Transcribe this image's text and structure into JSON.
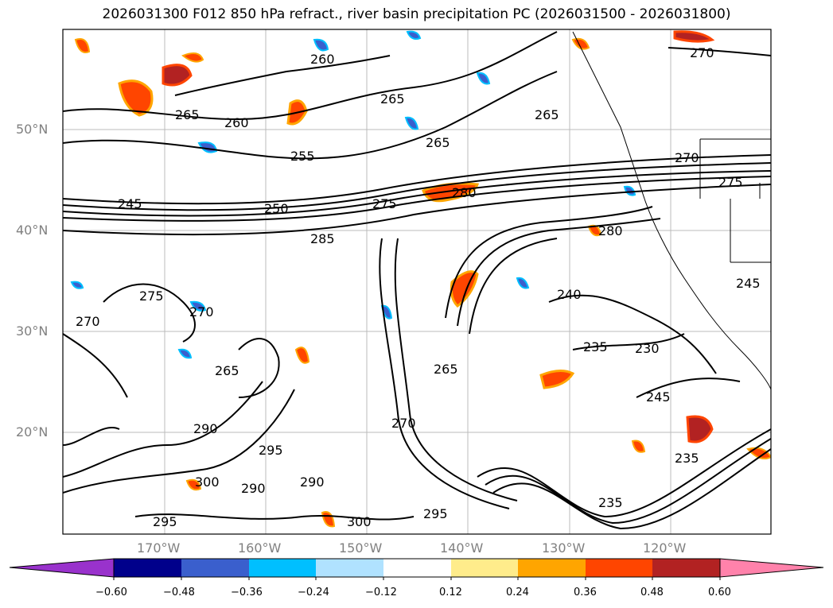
{
  "title": "2026031300 F012 850 hPa refract., river basin precipitation PC (2026031500 - 2026031800)",
  "lat_labels": [
    "50°N",
    "40°N",
    "30°N",
    "20°N"
  ],
  "lon_labels": [
    "170°W",
    "160°W",
    "150°W",
    "140°W",
    "130°W",
    "120°W"
  ],
  "contour_labels": [
    "265",
    "260",
    "255",
    "265",
    "245",
    "250",
    "275",
    "280",
    "285",
    "275",
    "270",
    "265",
    "290",
    "295",
    "300",
    "290",
    "290",
    "295",
    "300",
    "270",
    "265",
    "240",
    "235",
    "230",
    "245",
    "235",
    "235",
    "270",
    "270",
    "275",
    "245",
    "280",
    "265",
    "260",
    "265",
    "270",
    "295"
  ],
  "colorbar": {
    "colors": [
      "#9932cc",
      "#00008b",
      "#3a5fcd",
      "#00bfff",
      "#b0e2ff",
      "#ffffff",
      "#ffec8b",
      "#ffa500",
      "#ff4500",
      "#b22222",
      "#ff82ab"
    ],
    "ticks": [
      "−0.60",
      "−0.48",
      "−0.36",
      "−0.24",
      "−0.12",
      "0.12",
      "0.24",
      "0.36",
      "0.48",
      "0.60"
    ]
  }
}
